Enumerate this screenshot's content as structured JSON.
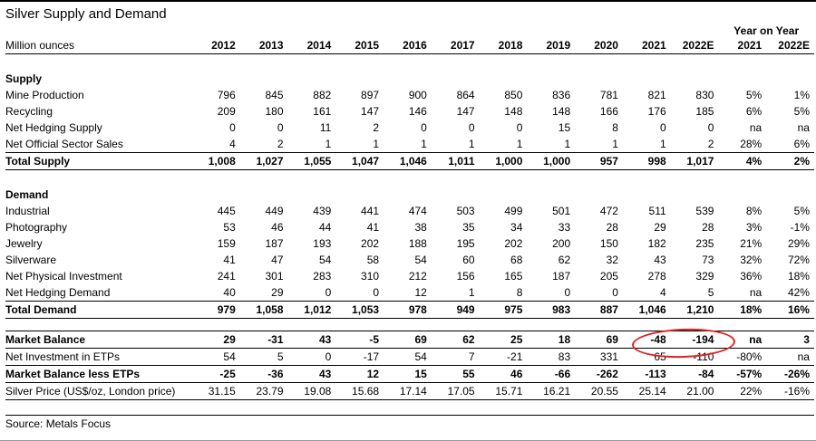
{
  "title": "Silver Supply and Demand",
  "header": {
    "unit_label": "Million ounces",
    "yoy_label": "Year on Year",
    "year_columns": [
      "2012",
      "2013",
      "2014",
      "2015",
      "2016",
      "2017",
      "2018",
      "2019",
      "2020",
      "2021",
      "2022E"
    ],
    "yoy_columns": [
      "2021",
      "2022E"
    ]
  },
  "rows": [
    {
      "type": "spacer"
    },
    {
      "type": "section",
      "label": "Supply"
    },
    {
      "type": "data",
      "label": "Mine Production",
      "values": [
        "796",
        "845",
        "882",
        "897",
        "900",
        "864",
        "850",
        "836",
        "781",
        "821",
        "830",
        "5%",
        "1%"
      ]
    },
    {
      "type": "data",
      "label": "Recycling",
      "values": [
        "209",
        "180",
        "161",
        "147",
        "146",
        "147",
        "148",
        "148",
        "166",
        "176",
        "185",
        "6%",
        "5%"
      ]
    },
    {
      "type": "data",
      "label": "Net Hedging Supply",
      "values": [
        "0",
        "0",
        "11",
        "2",
        "0",
        "0",
        "0",
        "15",
        "8",
        "0",
        "0",
        "na",
        "na"
      ]
    },
    {
      "type": "data",
      "label": "Net Official Sector Sales",
      "values": [
        "4",
        "2",
        "1",
        "1",
        "1",
        "1",
        "1",
        "1",
        "1",
        "1",
        "2",
        "28%",
        "6%"
      ]
    },
    {
      "type": "total",
      "label": "Total Supply",
      "values": [
        "1,008",
        "1,027",
        "1,055",
        "1,047",
        "1,046",
        "1,011",
        "1,000",
        "1,000",
        "957",
        "998",
        "1,017",
        "4%",
        "2%"
      ]
    },
    {
      "type": "spacer"
    },
    {
      "type": "section",
      "label": "Demand"
    },
    {
      "type": "data",
      "label": "Industrial",
      "values": [
        "445",
        "449",
        "439",
        "441",
        "474",
        "503",
        "499",
        "501",
        "472",
        "511",
        "539",
        "8%",
        "5%"
      ]
    },
    {
      "type": "data",
      "label": "Photography",
      "values": [
        "53",
        "46",
        "44",
        "41",
        "38",
        "35",
        "34",
        "33",
        "28",
        "29",
        "28",
        "3%",
        "-1%"
      ]
    },
    {
      "type": "data",
      "label": "Jewelry",
      "values": [
        "159",
        "187",
        "193",
        "202",
        "188",
        "195",
        "202",
        "200",
        "150",
        "182",
        "235",
        "21%",
        "29%"
      ]
    },
    {
      "type": "data",
      "label": "Silverware",
      "values": [
        "41",
        "47",
        "54",
        "58",
        "54",
        "60",
        "68",
        "62",
        "32",
        "43",
        "73",
        "32%",
        "72%"
      ]
    },
    {
      "type": "data",
      "label": "Net Physical Investment",
      "values": [
        "241",
        "301",
        "283",
        "310",
        "212",
        "156",
        "165",
        "187",
        "205",
        "278",
        "329",
        "36%",
        "18%"
      ]
    },
    {
      "type": "data",
      "label": "Net Hedging Demand",
      "values": [
        "40",
        "29",
        "0",
        "0",
        "12",
        "1",
        "8",
        "0",
        "0",
        "4",
        "5",
        "na",
        "42%"
      ]
    },
    {
      "type": "total",
      "label": "Total Demand",
      "values": [
        "979",
        "1,058",
        "1,012",
        "1,053",
        "978",
        "949",
        "975",
        "983",
        "887",
        "1,046",
        "1,210",
        "18%",
        "16%"
      ]
    },
    {
      "type": "spacer-sm"
    },
    {
      "type": "balance",
      "label": "Market Balance",
      "values": [
        "29",
        "-31",
        "43",
        "-5",
        "69",
        "62",
        "25",
        "18",
        "69",
        "-48",
        "-194",
        "na",
        "3"
      ]
    },
    {
      "type": "data-line",
      "label": "Net Investment in ETPs",
      "values": [
        "54",
        "5",
        "0",
        "-17",
        "54",
        "7",
        "-21",
        "83",
        "331",
        "65",
        "-110",
        "-80%",
        "na"
      ]
    },
    {
      "type": "balance-line",
      "label": "Market Balance less ETPs",
      "values": [
        "-25",
        "-36",
        "43",
        "12",
        "15",
        "55",
        "46",
        "-66",
        "-262",
        "-113",
        "-84",
        "-57%",
        "-26%"
      ]
    },
    {
      "type": "data-line",
      "label": "Silver Price (US$/oz, London price)",
      "values": [
        "31.15",
        "23.79",
        "19.08",
        "15.68",
        "17.14",
        "17.05",
        "15.71",
        "16.21",
        "20.55",
        "25.14",
        "21.00",
        "22%",
        "-16%"
      ]
    },
    {
      "type": "spacer-md"
    }
  ],
  "footer": {
    "source": "Source: Metals Focus"
  },
  "annotation": {
    "shape": "ellipse",
    "color": "#e02020",
    "target": "Market Balance 2021 and 2022E values"
  }
}
